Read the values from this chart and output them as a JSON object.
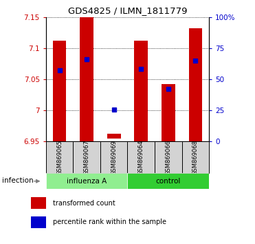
{
  "title": "GDS4825 / ILMN_1811779",
  "samples": [
    "GSM869065",
    "GSM869067",
    "GSM869069",
    "GSM869064",
    "GSM869066",
    "GSM869068"
  ],
  "ylim_left": [
    6.95,
    7.15
  ],
  "ylim_right": [
    0,
    100
  ],
  "yticks_left": [
    6.95,
    7.0,
    7.05,
    7.1,
    7.15
  ],
  "ytick_labels_left": [
    "6.95",
    "7",
    "7.05",
    "7.1",
    "7.15"
  ],
  "yticks_right": [
    0,
    25,
    50,
    75,
    100
  ],
  "ytick_labels_right": [
    "0",
    "25",
    "50",
    "75",
    "100%"
  ],
  "bar_bottoms": [
    6.95,
    6.95,
    6.955,
    6.95,
    6.95,
    6.95
  ],
  "bar_tops": [
    7.112,
    7.15,
    6.963,
    7.112,
    7.042,
    7.132
  ],
  "percentile_values": [
    7.065,
    7.082,
    7.001,
    7.067,
    7.035,
    7.08
  ],
  "bar_color": "#CC0000",
  "percentile_color": "#0000CC",
  "sample_box_color": "#d3d3d3",
  "left_axis_color": "#CC0000",
  "right_axis_color": "#0000CC",
  "influenza_color": "#90EE90",
  "control_color": "#32CD32",
  "legend_items": [
    "transformed count",
    "percentile rank within the sample"
  ],
  "infection_label": "infection",
  "bar_width": 0.5
}
